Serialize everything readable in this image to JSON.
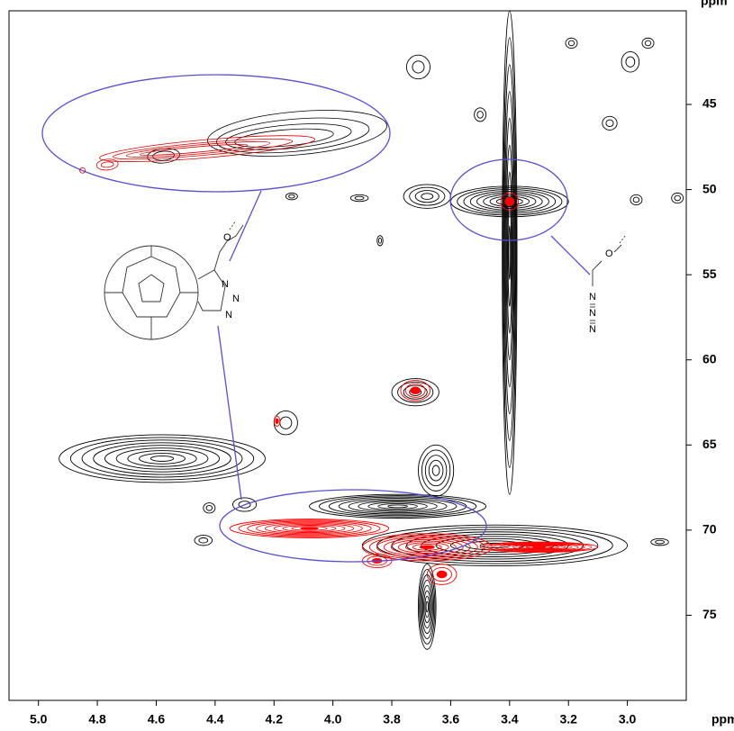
{
  "chart_data": {
    "type": "contour",
    "x_label": "ppm",
    "y_label": "ppm",
    "xlim": [
      5.1,
      2.8
    ],
    "ylim": [
      39.5,
      80
    ],
    "xticks": [
      {
        "value": 5,
        "label": "5.0"
      },
      4.8,
      4.6,
      4.4,
      4.2,
      {
        "value": 4,
        "label": "4.0"
      },
      3.8,
      3.6,
      3.4,
      3.2,
      {
        "value": 3,
        "label": "3.0"
      }
    ],
    "yticks": [
      45,
      50,
      55,
      60,
      65,
      70,
      75
    ],
    "series": [
      {
        "color": "#000000",
        "x": [
          3.4,
          3.4,
          2.99,
          3.19,
          2.93,
          3.71,
          3.06,
          3.5,
          3.68,
          3.91,
          4.14,
          2.97,
          2.83,
          3.84,
          3.72,
          4.58,
          3.78,
          3.45,
          3.68,
          3.65,
          4.42,
          4.3,
          4.16,
          2.89,
          4.44
        ],
        "y": [
          50.7,
          53.7,
          42.5,
          41.4,
          41.4,
          42.8,
          46.1,
          45.6,
          50.4,
          50.5,
          50.4,
          50.6,
          50.5,
          53.0,
          61.9,
          65.8,
          68.6,
          70.9,
          74.5,
          66.5,
          68.7,
          68.5,
          63.7,
          70.7,
          70.6
        ],
        "xw": [
          0.2,
          0.025,
          0.03,
          0.02,
          0.02,
          0.04,
          0.025,
          0.02,
          0.08,
          0.03,
          0.02,
          0.02,
          0.02,
          0.01,
          0.08,
          0.35,
          0.3,
          0.45,
          0.03,
          0.06,
          0.02,
          0.04,
          0.04,
          0.03,
          0.03
        ],
        "yw": [
          0.9,
          14.2,
          0.6,
          0.3,
          0.3,
          0.7,
          0.4,
          0.4,
          0.7,
          0.2,
          0.2,
          0.3,
          0.3,
          0.3,
          0.8,
          1.4,
          0.7,
          1.2,
          2.5,
          1.5,
          0.3,
          0.4,
          0.7,
          0.2,
          0.3
        ]
      },
      {
        "color": "#ff0000",
        "x": [
          3.4,
          3.72,
          3.63,
          4.08,
          3.68,
          4.19,
          3.3,
          3.85
        ],
        "y": [
          50.7,
          61.8,
          72.6,
          69.9,
          71.0,
          63.6,
          71.0,
          71.8
        ],
        "xw": [
          0.03,
          0.05,
          0.05,
          0.27,
          0.22,
          0.01,
          0.2,
          0.05
        ],
        "yw": [
          0.5,
          0.6,
          0.6,
          0.55,
          0.8,
          0.3,
          0.3,
          0.4
        ]
      }
    ],
    "annotations": [
      "O",
      "N",
      "N",
      "N",
      "O",
      "N",
      "N",
      "N"
    ]
  }
}
